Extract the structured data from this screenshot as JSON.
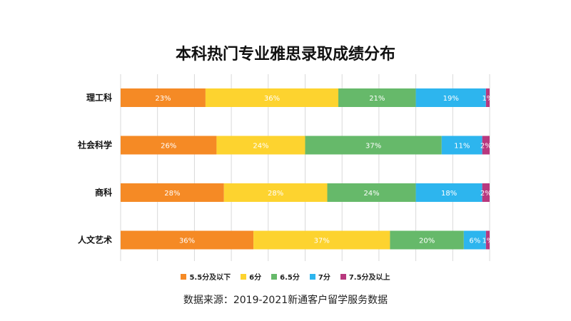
{
  "chart_data": {
    "type": "bar",
    "orientation": "horizontal",
    "stacked": true,
    "title": "本科热门专业雅思录取成绩分布",
    "categories": [
      "理工科",
      "社会科学",
      "商科",
      "人文艺术"
    ],
    "series": [
      {
        "name": "5.5分及以下",
        "color": "#F58A25",
        "values": [
          23,
          26,
          28,
          36
        ]
      },
      {
        "name": "6分",
        "color": "#FDD32F",
        "values": [
          36,
          24,
          28,
          37
        ]
      },
      {
        "name": "6.5分",
        "color": "#66B96A",
        "values": [
          21,
          37,
          24,
          20
        ]
      },
      {
        "name": "7分",
        "color": "#2DB5EE",
        "values": [
          19,
          11,
          18,
          6
        ]
      },
      {
        "name": "7.5分及以上",
        "color": "#B8387E",
        "values": [
          1,
          2,
          2,
          1
        ]
      }
    ],
    "value_suffix": "%",
    "xlim": [
      0,
      100
    ],
    "grid": true,
    "legend_position": "bottom",
    "source": "数据来源：2019-2021新通客户留学服务数据"
  }
}
